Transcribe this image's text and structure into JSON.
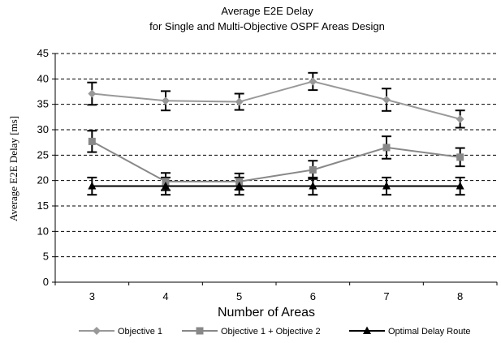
{
  "chart_data": {
    "type": "line",
    "title": "Average E2E Delay",
    "subtitle": "for Single and Multi-Objective OSPF Areas Design",
    "xlabel": "Number of Areas",
    "ylabel": "Average E2E Delay [ms]",
    "categories": [
      "3",
      "4",
      "5",
      "6",
      "7",
      "8"
    ],
    "ylim": [
      0,
      45
    ],
    "yticks": [
      0,
      5,
      10,
      15,
      20,
      25,
      30,
      35,
      40,
      45
    ],
    "grid": "horizontal-dashed",
    "legend_position": "bottom",
    "series": [
      {
        "name": "Objective 1",
        "marker": "diamond",
        "color": "#999999",
        "values": [
          37.1,
          35.7,
          35.5,
          39.5,
          35.9,
          32.1
        ],
        "error": [
          2.2,
          1.9,
          1.6,
          1.7,
          2.2,
          1.7
        ]
      },
      {
        "name": "Objective 1 + Objective 2",
        "marker": "square",
        "color": "#888888",
        "values": [
          27.7,
          19.8,
          19.8,
          22.1,
          26.5,
          24.6
        ],
        "error": [
          2.1,
          1.7,
          1.6,
          1.8,
          2.2,
          1.8
        ]
      },
      {
        "name": "Optimal Delay Route",
        "marker": "triangle",
        "color": "#000000",
        "values": [
          18.9,
          18.9,
          18.9,
          18.9,
          18.9,
          18.9
        ],
        "error": [
          1.7,
          1.7,
          1.7,
          1.7,
          1.7,
          1.7
        ]
      }
    ]
  }
}
